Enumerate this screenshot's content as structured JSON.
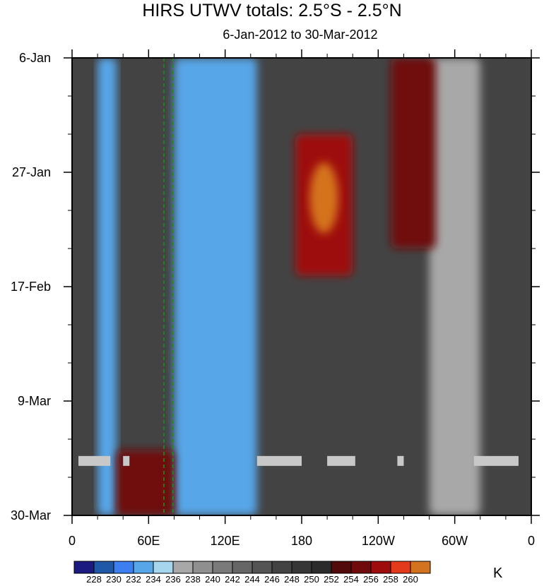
{
  "chart_data": {
    "type": "heatmap",
    "title": "HIRS UTWV totals: 2.5°S - 2.5°N",
    "subtitle": "6-Jan-2012 to 30-Mar-2012",
    "xlabel": "",
    "ylabel": "",
    "x_ticks": [
      "0",
      "60E",
      "120E",
      "180",
      "120W",
      "60W",
      "0"
    ],
    "x_tick_values": [
      0,
      60,
      120,
      180,
      240,
      300,
      360
    ],
    "xlim": [
      0,
      360
    ],
    "y_ticks": [
      "6-Jan",
      "27-Jan",
      "17-Feb",
      "9-Mar",
      "30-Mar"
    ],
    "y_tick_values": [
      "2012-01-06",
      "2012-01-27",
      "2012-02-17",
      "2012-03-09",
      "2012-03-30"
    ],
    "ylim": [
      "2012-01-06",
      "2012-03-30"
    ],
    "colorbar": {
      "levels": [
        228,
        230,
        232,
        234,
        236,
        238,
        240,
        242,
        244,
        246,
        248,
        250,
        252,
        254,
        256,
        258,
        260
      ],
      "colors": [
        "#1a1a80",
        "#1f58a6",
        "#3d7ff0",
        "#56a6e8",
        "#a6d6ed",
        "#a8a8a8",
        "#8f8f8f",
        "#7a7a7a",
        "#666666",
        "#545454",
        "#434343",
        "#363636",
        "#2b2b2b",
        "#520a0a",
        "#700b0b",
        "#9e0c0c",
        "#e33a1c",
        "#d4731f"
      ],
      "units": "K"
    },
    "features": [
      {
        "lon_range": [
          20,
          35
        ],
        "date_range": [
          "2012-01-06",
          "2012-03-30"
        ],
        "level": "low (<236 K)"
      },
      {
        "lon_range": [
          80,
          145
        ],
        "date_range": [
          "2012-01-06",
          "2012-03-30"
        ],
        "level": "low (<236 K)"
      },
      {
        "lon_range": [
          280,
          320
        ],
        "date_range": [
          "2012-01-06",
          "2012-03-30"
        ],
        "level": "low (<240 K)"
      },
      {
        "lon_range": [
          175,
          220
        ],
        "date_range": [
          "2012-01-20",
          "2012-02-15"
        ],
        "level": "high (254-260 K)"
      },
      {
        "lon_range": [
          250,
          285
        ],
        "date_range": [
          "2012-01-06",
          "2012-02-10"
        ],
        "level": "high (252-256 K)"
      },
      {
        "lon_range": [
          35,
          80
        ],
        "date_range": [
          "2012-03-18",
          "2012-03-30"
        ],
        "level": "high (252-256 K)"
      }
    ],
    "reference_lines": [
      {
        "lon": 72
      },
      {
        "lon": 79
      }
    ],
    "missing_data_date": "2012-03-20"
  }
}
